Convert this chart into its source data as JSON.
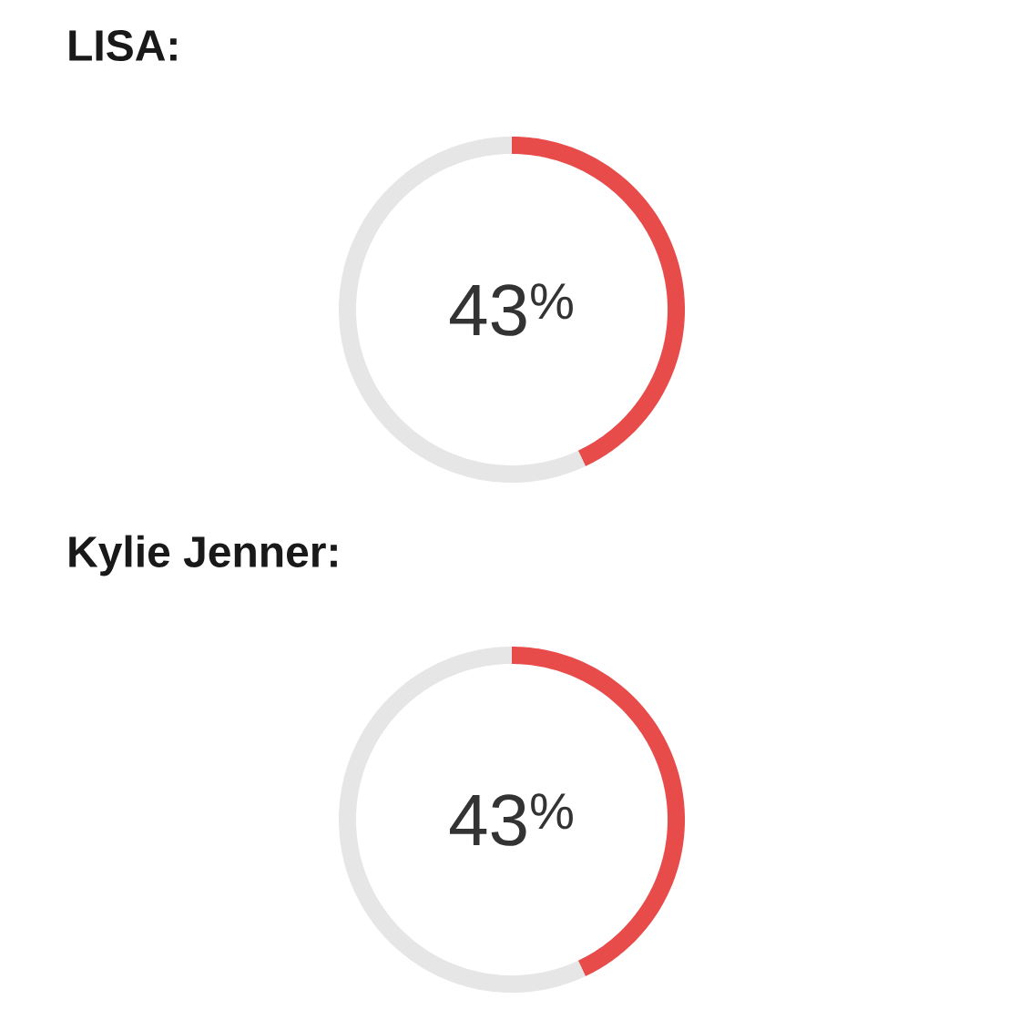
{
  "chart_data": [
    {
      "type": "donut",
      "title": "LISA:",
      "categories": [
        null,
        null
      ],
      "values": [
        43,
        57
      ],
      "colors": [
        "#e84c4a",
        "#e6e6e6"
      ],
      "value_labels": [
        "43$^{%}$",
        null
      ]
    },
    {
      "type": "donut",
      "title": "Kylie Jenner:",
      "categories": [
        null,
        null
      ],
      "values": [
        43,
        57
      ],
      "colors": [
        "#e84c4a",
        "#e6e6e6"
      ],
      "value_labels": [
        "43$^{%}$",
        null
      ]
    }
  ]
}
